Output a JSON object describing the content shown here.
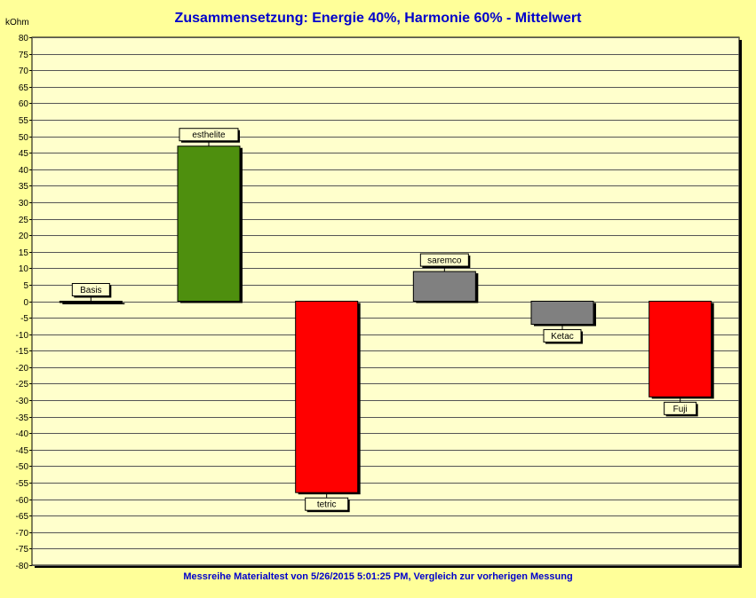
{
  "chart_data": {
    "type": "bar",
    "title": "Zusammensetzung: Energie 40%, Harmonie 60% - Mittelwert",
    "footer": "Messreihe Materialtest von 5/26/2015 5:01:25 PM, Vergleich zur vorherigen Messung",
    "unit": "kOhm",
    "ylim": [
      -80,
      80
    ],
    "ytick_step": 5,
    "grid": true,
    "categories": [
      "Basis",
      "esthelite",
      "tetric",
      "saremco",
      "Ketac",
      "Fuji"
    ],
    "values": [
      0,
      47,
      -58,
      9,
      -7,
      -29
    ],
    "colors": [
      "#000000",
      "#4E8F0E",
      "#FF0000",
      "#808080",
      "#808080",
      "#FF0000"
    ]
  }
}
